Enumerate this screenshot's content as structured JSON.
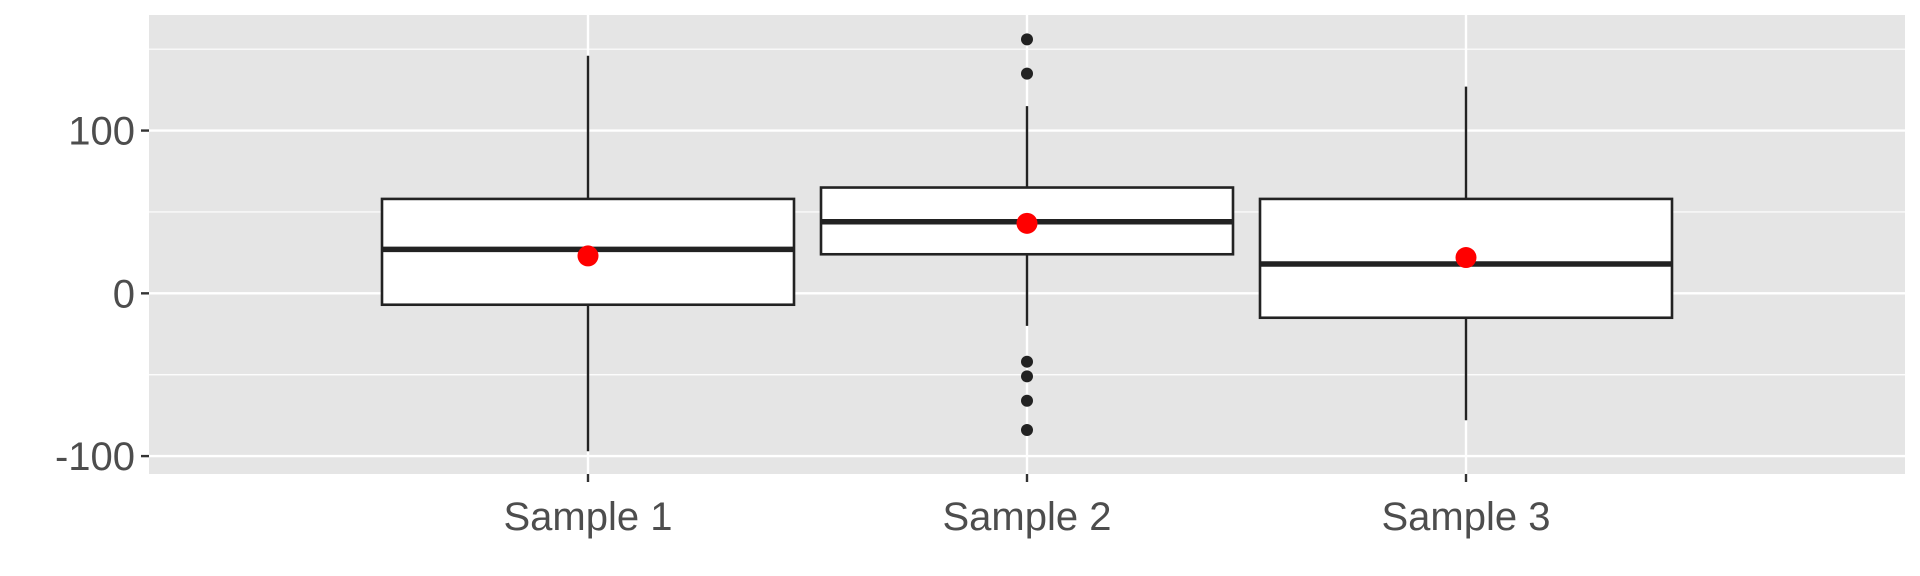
{
  "chart_data": {
    "type": "box",
    "categories": [
      "Sample 1",
      "Sample 2",
      "Sample 3"
    ],
    "ylim": [
      -111,
      171
    ],
    "yticks": [
      -100,
      0,
      100
    ],
    "ytick_labels": [
      "-100",
      "0",
      "100"
    ],
    "grid": true,
    "panel_background": "#e5e5e5",
    "mean_color": "#ff0000",
    "boxes": [
      {
        "category": "Sample 1",
        "whisker_low": -97,
        "q1": -7,
        "median": 27,
        "q3": 58,
        "whisker_high": 146,
        "mean": 23,
        "outliers": []
      },
      {
        "category": "Sample 2",
        "whisker_low": -20,
        "q1": 24,
        "median": 44,
        "q3": 65,
        "whisker_high": 115,
        "mean": 43,
        "outliers": [
          156,
          135,
          -42,
          -51,
          -66,
          -84
        ]
      },
      {
        "category": "Sample 3",
        "whisker_low": -78,
        "q1": -15,
        "median": 18,
        "q3": 58,
        "whisker_high": 127,
        "mean": 22,
        "outliers": []
      }
    ]
  }
}
